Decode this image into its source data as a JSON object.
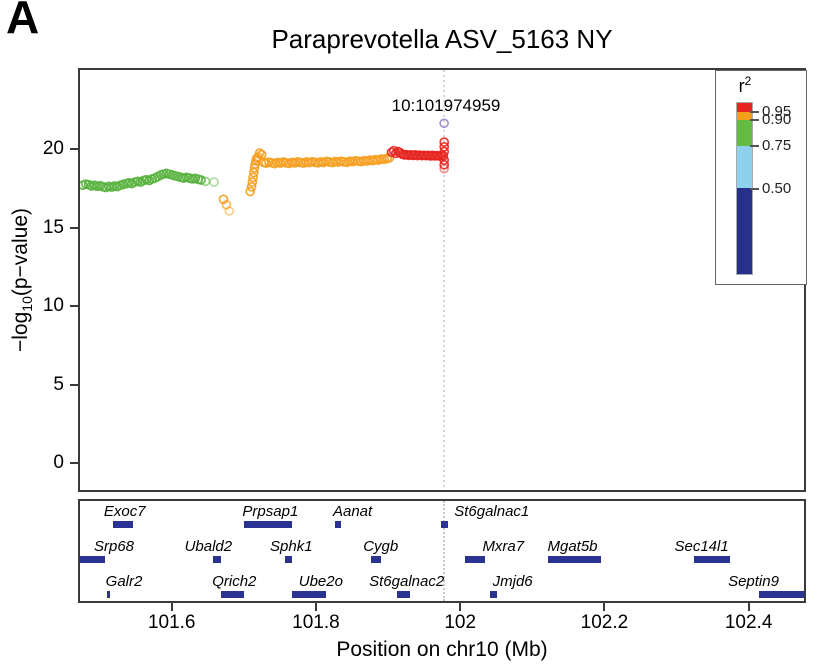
{
  "panel_label": "A",
  "title": "Paraprevotella ASV_5163 NY",
  "annotation": {
    "lead_snp_label": "10:101974959"
  },
  "axes": {
    "y_label_prefix": "−log",
    "y_label_sub": "10",
    "y_label_suffix": "(p−value)",
    "x_label": "Position on chr10 (Mb)",
    "y_ticks": [
      0,
      5,
      10,
      15,
      20
    ],
    "x_ticks": [
      101.6,
      101.8,
      102,
      102.2,
      102.4
    ],
    "x_tick_labels": [
      "101.6",
      "101.8",
      "102",
      "102.2",
      "102.4"
    ]
  },
  "legend": {
    "title": "r",
    "title_sup": "2",
    "ticks": [
      0.95,
      0.9,
      0.75,
      0.5
    ],
    "tick_labels": [
      "0.95",
      "0.90",
      "0.75",
      "0.50"
    ],
    "segments": [
      {
        "name": "r2-0.95-1.00",
        "color": "#e42520",
        "from": 0.95,
        "to": 1.0
      },
      {
        "name": "r2-0.90-0.95",
        "color": "#f59d1d",
        "from": 0.9,
        "to": 0.95
      },
      {
        "name": "r2-0.75-0.90",
        "color": "#64bb44",
        "from": 0.75,
        "to": 0.9
      },
      {
        "name": "r2-0.50-0.75",
        "color": "#8ed1ec",
        "from": 0.5,
        "to": 0.75
      },
      {
        "name": "r2-0.00-0.50",
        "color": "#283189",
        "from": 0.0,
        "to": 0.5
      }
    ]
  },
  "chart_data": {
    "type": "scatter",
    "title": "Paraprevotella ASV_5163 NY",
    "xlabel": "Position on chr10 (Mb)",
    "ylabel": "-log10(p-value)",
    "xlim": [
      101.47,
      102.474
    ],
    "ylim": [
      -1.6,
      25.2
    ],
    "grid": false,
    "legend_position": "top-right",
    "lead_snp": {
      "label": "10:101974959",
      "x": 101.974959,
      "y": 21.8,
      "color": "#a393cd"
    },
    "series": [
      {
        "name": "r2 0.75-0.90",
        "color": "#56b13c",
        "points": [
          [
            101.474,
            17.85
          ],
          [
            101.478,
            17.92
          ],
          [
            101.482,
            17.88
          ],
          [
            101.486,
            17.8
          ],
          [
            101.49,
            17.85
          ],
          [
            101.494,
            17.78
          ],
          [
            101.498,
            17.82
          ],
          [
            101.502,
            17.75
          ],
          [
            101.506,
            17.7
          ],
          [
            101.51,
            17.78
          ],
          [
            101.514,
            17.72
          ],
          [
            101.518,
            17.8
          ],
          [
            101.522,
            17.76
          ],
          [
            101.526,
            17.85
          ],
          [
            101.53,
            17.9
          ],
          [
            101.534,
            17.95
          ],
          [
            101.538,
            18.0
          ],
          [
            101.542,
            17.95
          ],
          [
            101.546,
            18.05
          ],
          [
            101.55,
            18.1
          ],
          [
            101.554,
            18.05
          ],
          [
            101.558,
            18.15
          ],
          [
            101.562,
            18.2
          ],
          [
            101.566,
            18.15
          ],
          [
            101.57,
            18.25
          ],
          [
            101.574,
            18.3
          ],
          [
            101.578,
            18.4
          ],
          [
            101.582,
            18.5
          ],
          [
            101.586,
            18.55
          ],
          [
            101.59,
            18.6
          ],
          [
            101.594,
            18.55
          ],
          [
            101.598,
            18.5
          ],
          [
            101.602,
            18.45
          ],
          [
            101.606,
            18.4
          ],
          [
            101.61,
            18.35
          ],
          [
            101.614,
            18.3
          ],
          [
            101.618,
            18.35
          ],
          [
            101.622,
            18.3
          ],
          [
            101.626,
            18.25
          ],
          [
            101.63,
            18.28
          ],
          [
            101.634,
            18.22
          ],
          [
            101.638,
            18.18
          ],
          [
            101.644,
            18.1,
            0.6
          ],
          [
            101.656,
            18.05,
            0.45
          ]
        ]
      },
      {
        "name": "r2 0.90-0.95",
        "color": "#f59d1d",
        "points": [
          [
            101.669,
            16.95
          ],
          [
            101.673,
            16.6,
            0.7
          ],
          [
            101.677,
            16.2,
            0.5
          ],
          [
            101.706,
            17.45
          ],
          [
            101.708,
            17.75
          ],
          [
            101.709,
            18.05
          ],
          [
            101.71,
            18.35
          ],
          [
            101.711,
            18.65
          ],
          [
            101.712,
            18.95
          ],
          [
            101.713,
            19.2
          ],
          [
            101.714,
            19.4
          ],
          [
            101.715,
            19.55
          ],
          [
            101.717,
            19.65
          ],
          [
            101.719,
            19.9
          ],
          [
            101.722,
            19.8
          ],
          [
            101.725,
            19.3
          ],
          [
            101.728,
            19.25
          ],
          [
            101.732,
            19.32
          ],
          [
            101.736,
            19.28
          ],
          [
            101.74,
            19.22
          ],
          [
            101.744,
            19.3
          ],
          [
            101.748,
            19.26
          ],
          [
            101.752,
            19.33
          ],
          [
            101.756,
            19.28
          ],
          [
            101.76,
            19.24
          ],
          [
            101.764,
            19.31
          ],
          [
            101.768,
            19.27
          ],
          [
            101.772,
            19.34
          ],
          [
            101.776,
            19.3
          ],
          [
            101.78,
            19.26
          ],
          [
            101.784,
            19.33
          ],
          [
            101.788,
            19.29
          ],
          [
            101.792,
            19.35
          ],
          [
            101.796,
            19.31
          ],
          [
            101.8,
            19.28
          ],
          [
            101.804,
            19.34
          ],
          [
            101.808,
            19.3
          ],
          [
            101.812,
            19.37
          ],
          [
            101.816,
            19.33
          ],
          [
            101.82,
            19.29
          ],
          [
            101.824,
            19.36
          ],
          [
            101.828,
            19.32
          ],
          [
            101.832,
            19.38
          ],
          [
            101.836,
            19.34
          ],
          [
            101.84,
            19.31
          ],
          [
            101.844,
            19.38
          ],
          [
            101.848,
            19.35
          ],
          [
            101.852,
            19.41
          ],
          [
            101.856,
            19.38
          ],
          [
            101.86,
            19.35
          ],
          [
            101.864,
            19.42
          ],
          [
            101.868,
            19.39
          ],
          [
            101.872,
            19.45
          ],
          [
            101.876,
            19.42
          ],
          [
            101.88,
            19.48
          ],
          [
            101.884,
            19.45
          ],
          [
            101.888,
            19.52
          ],
          [
            101.892,
            19.5
          ],
          [
            101.896,
            19.56
          ],
          [
            101.899,
            19.6
          ]
        ]
      },
      {
        "name": "r2 0.95-1.00",
        "color": "#e5251f",
        "points": [
          [
            101.902,
            19.95
          ],
          [
            101.905,
            20.05
          ],
          [
            101.908,
            19.88
          ],
          [
            101.911,
            20.0
          ],
          [
            101.914,
            19.92
          ],
          [
            101.917,
            19.82
          ],
          [
            101.92,
            19.78
          ],
          [
            101.923,
            19.8
          ],
          [
            101.926,
            19.76
          ],
          [
            101.929,
            19.79
          ],
          [
            101.932,
            19.75
          ],
          [
            101.935,
            19.78
          ],
          [
            101.938,
            19.74
          ],
          [
            101.941,
            19.77
          ],
          [
            101.944,
            19.74
          ],
          [
            101.947,
            19.76
          ],
          [
            101.95,
            19.73
          ],
          [
            101.953,
            19.76
          ],
          [
            101.956,
            19.72
          ],
          [
            101.959,
            19.75
          ],
          [
            101.962,
            19.72
          ],
          [
            101.965,
            19.74
          ],
          [
            101.968,
            19.71
          ],
          [
            101.971,
            19.73
          ],
          [
            101.974,
            19.72
          ],
          [
            101.975,
            20.6
          ],
          [
            101.975,
            20.3
          ],
          [
            101.975,
            20.0
          ],
          [
            101.975,
            19.45
          ],
          [
            101.975,
            19.15
          ],
          [
            101.975,
            18.9,
            0.5
          ]
        ]
      }
    ]
  },
  "gene_track": {
    "rows": [
      [
        {
          "name": "Exoc7",
          "start": 101.516,
          "end": 101.543,
          "label_x": 101.532
        },
        {
          "name": "Prpsap1",
          "start": 101.698,
          "end": 101.764,
          "label_x": 101.734
        },
        {
          "name": "Aanat",
          "start": 101.823,
          "end": 101.832,
          "label_x": 101.848
        },
        {
          "name": "St6galnac1",
          "start": 101.97,
          "end": 101.981,
          "label_x": 102.041
        }
      ],
      [
        {
          "name": "Srp68",
          "start": 101.47,
          "end": 101.505,
          "label_x": 101.503
        },
        {
          "name": "Ubald2",
          "start": 101.654,
          "end": 101.666,
          "label_x": 101.648
        },
        {
          "name": "Sphk1",
          "start": 101.754,
          "end": 101.764,
          "label_x": 101.763
        },
        {
          "name": "Cygb",
          "start": 101.874,
          "end": 101.888,
          "label_x": 101.887
        },
        {
          "name": "Mxra7",
          "start": 102.004,
          "end": 102.032,
          "label_x": 102.057
        },
        {
          "name": "Mgat5b",
          "start": 102.119,
          "end": 102.192,
          "label_x": 102.153
        },
        {
          "name": "Sec14l1",
          "start": 102.321,
          "end": 102.371,
          "label_x": 102.332
        }
      ],
      [
        {
          "name": "Galr2",
          "start": 101.508,
          "end": 101.512,
          "label_x": 101.531
        },
        {
          "name": "Qrich2",
          "start": 101.666,
          "end": 101.698,
          "label_x": 101.684
        },
        {
          "name": "Ube2o",
          "start": 101.764,
          "end": 101.811,
          "label_x": 101.804
        },
        {
          "name": "St6galnac2",
          "start": 101.909,
          "end": 101.928,
          "label_x": 101.923
        },
        {
          "name": "Jmjd6",
          "start": 102.039,
          "end": 102.048,
          "label_x": 102.07
        },
        {
          "name": "Septin9",
          "start": 102.411,
          "end": 102.474,
          "label_x": 102.404
        }
      ]
    ]
  }
}
